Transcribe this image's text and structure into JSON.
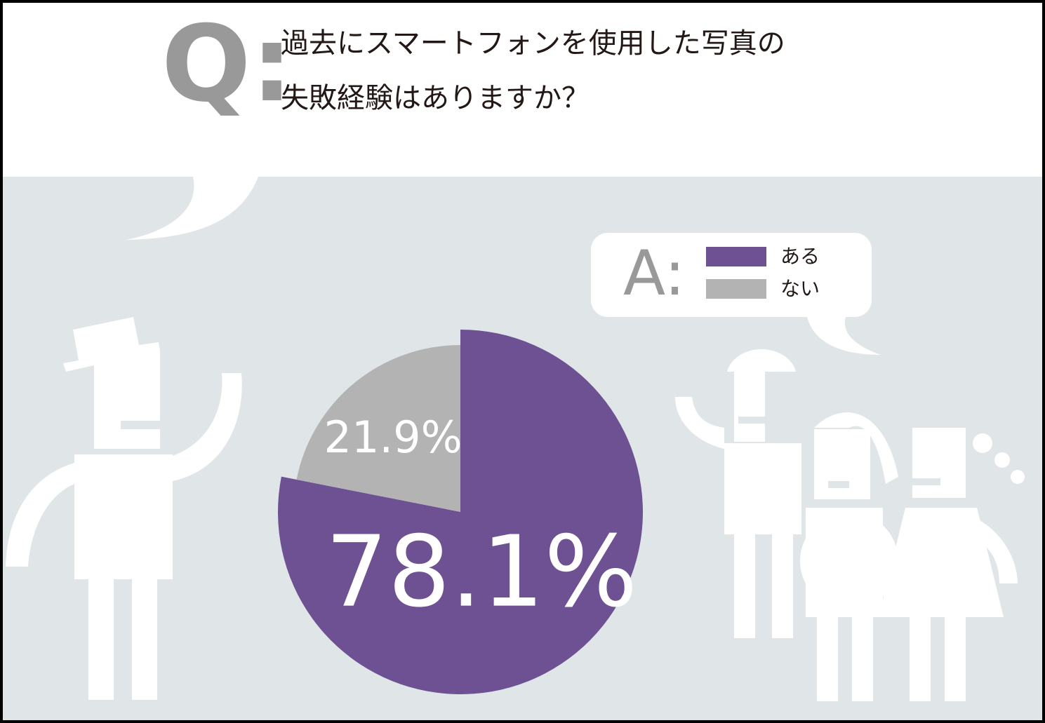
{
  "chart_data": {
    "type": "pie",
    "question_mark": "Q:",
    "title": [
      "過去にスマートフォンを使用した写真の",
      "失敗経験はありますか？"
    ],
    "answer_mark": "A:",
    "categories": [
      "ある",
      "ない"
    ],
    "values": [
      78.1,
      21.9
    ],
    "value_labels": [
      "78.1%",
      "21.9%"
    ],
    "colors": [
      "#6e5193",
      "#b3b3b3"
    ]
  }
}
